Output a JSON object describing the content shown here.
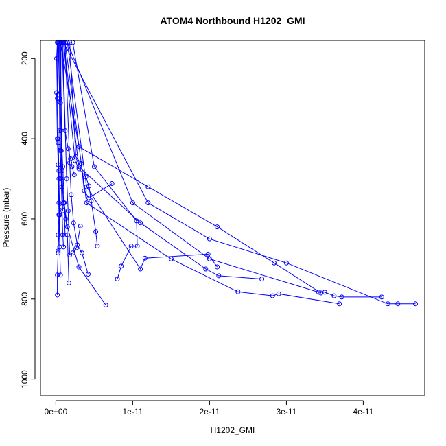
{
  "chart_data": {
    "type": "line",
    "title": "ATOM4 Northbound H1202_GMI",
    "xlabel": "H1202_GMI",
    "ylabel": "Pressure (mbar)",
    "xlim": [
      -2e-12,
      4.8e-11
    ],
    "ylim": [
      1040,
      155
    ],
    "y_axis_inverted": true,
    "x_ticks": [
      0,
      1e-11,
      2e-11,
      3e-11,
      4e-11
    ],
    "x_tick_labels": [
      "0e+00",
      "1e-11",
      "2e-11",
      "3e-11",
      "4e-11"
    ],
    "y_ticks": [
      200,
      400,
      600,
      800,
      1000
    ],
    "y_tick_labels": [
      "200",
      "400",
      "600",
      "800",
      "1000"
    ],
    "series_color": "#0000ff",
    "marker": "open-circle",
    "grid": false,
    "series": [
      {
        "x": [
          2e-13,
          2e-13,
          3e-13,
          5e-13,
          4e-13,
          3e-13,
          2e-13,
          1e-13,
          2e-13
        ],
        "y": [
          790,
          740,
          680,
          590,
          500,
          400,
          300,
          200,
          160
        ]
      },
      {
        "x": [
          6.5e-12,
          3e-12,
          1.5e-12,
          8e-13,
          5e-13,
          7e-13
        ],
        "y": [
          815,
          720,
          620,
          520,
          420,
          160
        ]
      },
      {
        "x": [
          4.68e-11,
          4.45e-11,
          4.32e-11,
          3e-11,
          2e-11,
          1.2e-11,
          1e-12
        ],
        "y": [
          812,
          812,
          812,
          710,
          650,
          560,
          160
        ]
      },
      {
        "x": [
          4.24e-11,
          3.72e-11,
          3.62e-11,
          3.5e-11,
          3.42e-11,
          2e-11,
          1e-11,
          1.5e-12
        ],
        "y": [
          795,
          795,
          792,
          783,
          783,
          700,
          560,
          160
        ]
      },
      {
        "x": [
          3.69e-11,
          2.9e-11,
          2.82e-11,
          2.37e-11,
          1.5e-11,
          4e-12,
          1.2e-12
        ],
        "y": [
          812,
          787,
          792,
          782,
          700,
          560,
          160
        ]
      },
      {
        "x": [
          3.45e-11,
          2.84e-11,
          2.1e-11,
          1.2e-11,
          3e-12,
          6e-13
        ],
        "y": [
          785,
          710,
          620,
          520,
          420,
          160
        ]
      },
      {
        "x": [
          2.68e-11,
          2.12e-11,
          1.95e-11,
          1.1e-11,
          3e-12,
          1e-12
        ],
        "y": [
          750,
          742,
          725,
          610,
          470,
          160
        ]
      },
      {
        "x": [
          2.1e-11,
          1.98e-11,
          1.16e-11,
          1.1e-11,
          4e-12,
          1.5e-12
        ],
        "y": [
          720,
          688,
          698,
          725,
          520,
          160
        ]
      },
      {
        "x": [
          8e-12,
          8.5e-12,
          9.8e-12,
          1.06e-11,
          1.05e-11,
          5e-12,
          2.2e-12
        ],
        "y": [
          750,
          718,
          668,
          668,
          605,
          470,
          160
        ]
      },
      {
        "x": [
          4.2e-12,
          3.4e-12,
          2.8e-12,
          2.3e-12,
          2e-12,
          1.8e-12,
          1.2e-12
        ],
        "y": [
          738,
          685,
          665,
          610,
          540,
          460,
          160
        ]
      },
      {
        "x": [
          5.4e-12,
          5.2e-12,
          4.6e-12,
          4.3e-12,
          3.9e-12,
          3e-12,
          2.5e-12,
          1e-12
        ],
        "y": [
          668,
          632,
          555,
          518,
          495,
          475,
          455,
          160
        ]
      },
      {
        "x": [
          7.3e-12,
          4.3e-12,
          3.7e-12,
          3.3e-12,
          2.6e-12,
          1.8e-12
        ],
        "y": [
          512,
          548,
          530,
          462,
          445,
          160
        ]
      },
      {
        "x": [
          3.2e-12,
          2.7e-12,
          2.2e-12,
          1.8e-12,
          1.6e-12,
          1.4e-12,
          9e-13
        ],
        "y": [
          618,
          672,
          685,
          690,
          580,
          500,
          160
        ]
      },
      {
        "x": [
          1.7e-12,
          1.5e-12,
          1.3e-12,
          1e-12,
          8e-13,
          6e-13
        ],
        "y": [
          760,
          640,
          600,
          560,
          480,
          160
        ]
      },
      {
        "x": [
          1e-12,
          9e-13,
          8e-13,
          7e-13,
          6e-13,
          5e-13,
          4e-13
        ],
        "y": [
          670,
          640,
          570,
          500,
          430,
          380,
          160
        ]
      },
      {
        "x": [
          1.2e-12,
          1.1e-12,
          9e-13,
          7e-13,
          5e-13,
          3e-13
        ],
        "y": [
          640,
          560,
          470,
          380,
          300,
          160
        ]
      },
      {
        "x": [
          2.4e-12,
          2.1e-12,
          1.9e-12,
          1.6e-12,
          1.2e-12,
          8e-13
        ],
        "y": [
          490,
          470,
          450,
          425,
          380,
          160
        ]
      },
      {
        "x": [
          3e-13,
          3e-13,
          4e-13,
          3e-13,
          2e-13,
          1e-13
        ],
        "y": [
          685,
          640,
          590,
          465,
          400,
          285
        ]
      },
      {
        "x": [
          6e-13,
          5e-13,
          4e-13,
          4e-13,
          3e-13,
          2e-13
        ],
        "y": [
          740,
          670,
          560,
          480,
          410,
          160
        ]
      },
      {
        "x": [
          9e-13,
          8e-13,
          7e-13,
          6e-13,
          5e-13
        ],
        "y": [
          580,
          520,
          430,
          310,
          160
        ]
      }
    ]
  }
}
